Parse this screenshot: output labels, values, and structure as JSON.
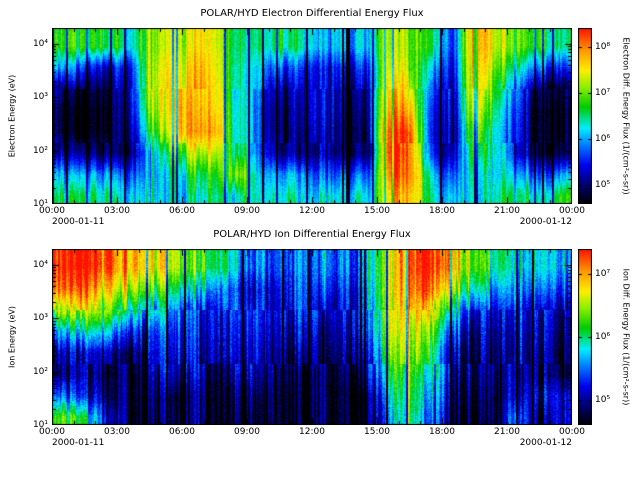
{
  "figure": {
    "background": "#ffffff",
    "text_color": "#000000"
  },
  "colormap": {
    "stops": [
      {
        "p": 0.0,
        "c": "#000000"
      },
      {
        "p": 0.1,
        "c": "#000066"
      },
      {
        "p": 0.22,
        "c": "#0000ee"
      },
      {
        "p": 0.33,
        "c": "#0077ff"
      },
      {
        "p": 0.43,
        "c": "#00eeff"
      },
      {
        "p": 0.55,
        "c": "#00cc00"
      },
      {
        "p": 0.66,
        "c": "#88ee00"
      },
      {
        "p": 0.76,
        "c": "#ffee00"
      },
      {
        "p": 0.87,
        "c": "#ff9900"
      },
      {
        "p": 1.0,
        "c": "#ff1100"
      }
    ]
  },
  "chart_data": [
    {
      "type": "heatmap",
      "title": "POLAR/HYD  Electron Differential Energy Flux",
      "ylabel": "Electron Energy (eV)",
      "y_scale": "log",
      "y_range_ev": [
        10,
        20000
      ],
      "y_ticks": [
        "10⁴",
        "10³",
        "10²",
        "10¹"
      ],
      "y_tick_exponents": [
        4,
        3,
        2,
        1
      ],
      "x_ticks": [
        "00:00",
        "03:00",
        "06:00",
        "09:00",
        "12:00",
        "15:00",
        "18:00",
        "21:00",
        "00:00"
      ],
      "x_range_hours": [
        0,
        24
      ],
      "date_left": "2000-01-11",
      "date_right": "2000-01-12",
      "grid_lines": false,
      "colorbar": {
        "position": "right",
        "label": "Electron Diff. Energy Flux  (1/(cm²-s-sr))",
        "ticks": [
          "10⁸",
          "10⁷",
          "10⁶",
          "10⁵"
        ],
        "tick_exponents": [
          8,
          7,
          6,
          5
        ],
        "log10_flux_range": [
          4.6,
          8.4
        ]
      },
      "grid": {
        "time_hours_centers": [
          0.5,
          1.5,
          2.5,
          3.5,
          4.5,
          5.5,
          6.5,
          7.5,
          8.5,
          9.5,
          10.5,
          11.5,
          12.5,
          13.5,
          14.5,
          15.5,
          16.5,
          17.5,
          18.5,
          19.5,
          20.5,
          21.5,
          22.5,
          23.5
        ],
        "energy_log10ev_rows": [
          1.15,
          1.55,
          1.95,
          2.35,
          2.75,
          3.15,
          3.55,
          3.95
        ],
        "log10_flux": [
          [
            6.6,
            6.6,
            6.4,
            6.3,
            6.2,
            6.2,
            6.3,
            6.4,
            6.3,
            6.4,
            6.3,
            6.2,
            6.3,
            6.2,
            6.2,
            7.6,
            8.0,
            6.4,
            6.0,
            6.4,
            6.3,
            6.4,
            6.4,
            6.8
          ],
          [
            6.1,
            6.1,
            5.9,
            5.8,
            6.0,
            6.3,
            6.6,
            6.6,
            7.2,
            6.2,
            5.9,
            5.9,
            5.8,
            5.7,
            5.7,
            8.0,
            8.3,
            6.2,
            5.6,
            6.6,
            6.1,
            5.9,
            5.7,
            6.0
          ],
          [
            5.2,
            5.1,
            4.9,
            5.0,
            6.0,
            6.8,
            7.2,
            7.2,
            6.6,
            5.9,
            5.0,
            5.0,
            5.3,
            4.9,
            4.9,
            8.3,
            8.3,
            5.6,
            5.1,
            7.0,
            6.2,
            5.2,
            4.9,
            4.9
          ],
          [
            4.7,
            4.7,
            4.7,
            5.1,
            6.6,
            7.4,
            7.9,
            7.8,
            6.5,
            5.8,
            4.8,
            5.1,
            5.4,
            4.8,
            5.0,
            8.3,
            8.2,
            5.5,
            5.0,
            7.2,
            6.3,
            5.3,
            4.8,
            4.8
          ],
          [
            4.7,
            4.7,
            4.7,
            5.2,
            7.0,
            7.6,
            7.8,
            7.6,
            6.5,
            5.8,
            4.8,
            5.2,
            5.5,
            4.9,
            5.1,
            8.0,
            7.8,
            5.6,
            5.1,
            7.6,
            6.5,
            5.4,
            4.8,
            4.8
          ],
          [
            5.0,
            4.9,
            4.8,
            5.3,
            7.2,
            7.6,
            7.7,
            7.5,
            6.4,
            5.9,
            5.0,
            5.3,
            5.5,
            5.0,
            5.2,
            7.8,
            7.4,
            5.8,
            5.2,
            7.8,
            6.8,
            5.6,
            5.0,
            5.0
          ],
          [
            6.0,
            5.6,
            5.2,
            5.5,
            7.2,
            7.5,
            7.6,
            7.4,
            6.4,
            6.0,
            5.6,
            5.6,
            5.5,
            5.3,
            5.5,
            7.6,
            7.1,
            6.2,
            5.4,
            7.9,
            7.1,
            6.2,
            5.8,
            5.8
          ],
          [
            6.8,
            6.8,
            6.6,
            6.4,
            7.1,
            7.3,
            7.4,
            7.3,
            6.5,
            6.3,
            6.5,
            6.4,
            6.1,
            5.9,
            6.1,
            7.4,
            7.0,
            6.7,
            5.6,
            8.0,
            7.4,
            6.8,
            6.8,
            6.7
          ]
        ]
      }
    },
    {
      "type": "heatmap",
      "title": "POLAR/HYD  Ion Differential Energy Flux",
      "ylabel": "Ion Energy (eV)",
      "y_scale": "log",
      "y_range_ev": [
        10,
        20000
      ],
      "y_ticks": [
        "10⁴",
        "10³",
        "10²",
        "10¹"
      ],
      "y_tick_exponents": [
        4,
        3,
        2,
        1
      ],
      "x_ticks": [
        "00:00",
        "03:00",
        "06:00",
        "09:00",
        "12:00",
        "15:00",
        "18:00",
        "21:00",
        "00:00"
      ],
      "x_range_hours": [
        0,
        24
      ],
      "date_left": "2000-01-11",
      "date_right": "2000-01-12",
      "grid_lines": false,
      "colorbar": {
        "position": "right",
        "label": "Ion Diff. Energy Flux  (1/(cm²-s-sr))",
        "ticks": [
          "10⁷",
          "10⁶",
          "10⁵"
        ],
        "tick_exponents": [
          7,
          6,
          5
        ],
        "log10_flux_range": [
          4.6,
          7.4
        ]
      },
      "grid": {
        "time_hours_centers": [
          0.5,
          1.5,
          2.5,
          3.5,
          4.5,
          5.5,
          6.5,
          7.5,
          8.5,
          9.5,
          10.5,
          11.5,
          12.5,
          13.5,
          14.5,
          15.5,
          16.5,
          17.5,
          18.5,
          19.5,
          20.5,
          21.5,
          22.5,
          23.5
        ],
        "energy_log10ev_rows": [
          1.15,
          1.55,
          1.95,
          2.35,
          2.75,
          3.15,
          3.55,
          3.95
        ],
        "log10_flux": [
          [
            6.2,
            6.0,
            5.2,
            4.7,
            4.7,
            4.7,
            4.9,
            4.7,
            4.7,
            4.7,
            4.7,
            4.7,
            4.7,
            4.7,
            4.7,
            5.4,
            6.2,
            5.4,
            4.8,
            4.7,
            4.7,
            5.6,
            4.7,
            5.2
          ],
          [
            5.4,
            5.2,
            4.9,
            4.7,
            4.8,
            4.7,
            4.9,
            4.7,
            4.8,
            4.8,
            4.7,
            4.7,
            4.7,
            4.7,
            4.7,
            5.6,
            6.3,
            5.6,
            4.9,
            4.8,
            4.7,
            5.2,
            5.0,
            5.2
          ],
          [
            4.8,
            5.0,
            4.8,
            4.7,
            4.9,
            5.0,
            5.1,
            4.8,
            5.0,
            5.0,
            4.8,
            4.8,
            4.7,
            4.8,
            5.0,
            5.9,
            6.4,
            5.8,
            5.0,
            4.9,
            4.8,
            5.1,
            4.8,
            4.8
          ],
          [
            4.9,
            5.2,
            4.9,
            4.8,
            5.0,
            5.2,
            5.2,
            4.9,
            5.2,
            5.1,
            4.9,
            5.0,
            4.8,
            4.9,
            5.2,
            6.1,
            6.6,
            6.0,
            5.1,
            5.0,
            4.9,
            5.1,
            4.9,
            4.8
          ],
          [
            5.5,
            5.9,
            5.6,
            5.3,
            5.2,
            5.3,
            5.3,
            5.0,
            5.3,
            5.2,
            5.0,
            5.2,
            4.9,
            5.0,
            5.4,
            6.3,
            6.7,
            6.3,
            5.4,
            5.1,
            5.0,
            5.2,
            5.0,
            4.9
          ],
          [
            6.4,
            6.6,
            6.3,
            6.0,
            5.7,
            5.6,
            5.4,
            5.1,
            5.4,
            5.3,
            5.1,
            5.4,
            5.1,
            5.1,
            5.5,
            6.4,
            6.9,
            6.7,
            5.9,
            5.3,
            5.2,
            5.3,
            5.1,
            5.0
          ],
          [
            7.1,
            7.1,
            6.8,
            6.6,
            6.3,
            6.1,
            5.9,
            5.5,
            5.3,
            5.2,
            5.2,
            5.4,
            5.4,
            5.2,
            5.6,
            6.5,
            7.1,
            7.2,
            6.6,
            5.9,
            5.6,
            5.6,
            5.5,
            5.3
          ],
          [
            7.3,
            7.4,
            7.2,
            7.0,
            6.8,
            6.6,
            6.4,
            6.0,
            5.7,
            5.5,
            5.4,
            5.5,
            5.6,
            5.4,
            5.7,
            6.5,
            7.2,
            7.4,
            7.0,
            6.3,
            6.0,
            5.8,
            5.8,
            5.6
          ]
        ]
      }
    }
  ]
}
